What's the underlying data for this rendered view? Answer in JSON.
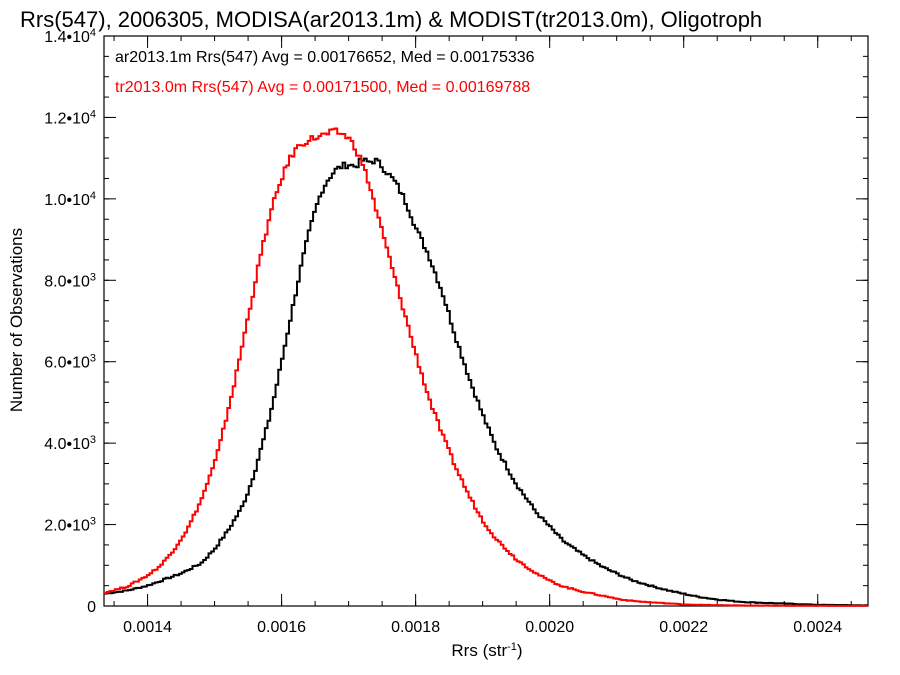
{
  "chart_data": {
    "type": "line",
    "title": "Rrs(547), 2006305, MODISA(ar2013.1m) & MODIST(tr2013.0m), Oligotroph",
    "xlabel": "Rrs (str",
    "xlabel_sup": "-1",
    "xlabel_suffix": ")",
    "ylabel": "Number of Observations",
    "xlim": [
      0.001335,
      0.002475
    ],
    "ylim": [
      0,
      14000
    ],
    "x_ticks": [
      {
        "value": 0.0014,
        "label": "0.0014"
      },
      {
        "value": 0.0016,
        "label": "0.0016"
      },
      {
        "value": 0.0018,
        "label": "0.0018"
      },
      {
        "value": 0.002,
        "label": "0.0020"
      },
      {
        "value": 0.0022,
        "label": "0.0022"
      },
      {
        "value": 0.0024,
        "label": "0.0024"
      }
    ],
    "y_ticks": [
      {
        "value": 0,
        "label": "0",
        "sup": ""
      },
      {
        "value": 2000,
        "label": "2.0•10",
        "sup": "3"
      },
      {
        "value": 4000,
        "label": "4.0•10",
        "sup": "3"
      },
      {
        "value": 6000,
        "label": "6.0•10",
        "sup": "3"
      },
      {
        "value": 8000,
        "label": "8.0•10",
        "sup": "3"
      },
      {
        "value": 10000,
        "label": "1.0•10",
        "sup": "4"
      },
      {
        "value": 12000,
        "label": "1.2•10",
        "sup": "4"
      },
      {
        "value": 14000,
        "label": "1.4•10",
        "sup": "4"
      }
    ],
    "legend_position": "top-left",
    "colors": {
      "ar": "#000000",
      "tr": "#ff0000"
    },
    "series": [
      {
        "name": "ar2013.1m",
        "legend": "ar2013.1m Rrs(547) Avg = 0.00176652, Med = 0.00175336",
        "color": "#000000",
        "x": [
          0.001335,
          0.00137,
          0.0014,
          0.00142,
          0.00145,
          0.00148,
          0.0015,
          0.00152,
          0.00154,
          0.00155,
          0.00156,
          0.00157,
          0.00158,
          0.00159,
          0.0016,
          0.00161,
          0.00162,
          0.00163,
          0.00164,
          0.00165,
          0.00166,
          0.00167,
          0.00168,
          0.00169,
          0.0017,
          0.00171,
          0.00172,
          0.00173,
          0.00174,
          0.00175,
          0.00176,
          0.00177,
          0.00178,
          0.00179,
          0.0018,
          0.00182,
          0.00184,
          0.00186,
          0.00188,
          0.0019,
          0.00192,
          0.00195,
          0.00198,
          0.002,
          0.00202,
          0.00205,
          0.00208,
          0.0021,
          0.00212,
          0.00215,
          0.00218,
          0.0022,
          0.00222,
          0.00225,
          0.00228,
          0.0023,
          0.00235,
          0.0024,
          0.002475
        ],
        "values": [
          300,
          380,
          500,
          620,
          800,
          1050,
          1400,
          1850,
          2400,
          2800,
          3300,
          3900,
          4500,
          5200,
          6000,
          6800,
          7600,
          8400,
          9100,
          9700,
          10200,
          10500,
          10700,
          10800,
          10850,
          10800,
          10950,
          10900,
          10950,
          10800,
          10600,
          10400,
          10100,
          9750,
          9300,
          8600,
          7700,
          6600,
          5600,
          4700,
          3900,
          3000,
          2300,
          1950,
          1600,
          1250,
          950,
          800,
          650,
          500,
          370,
          300,
          230,
          160,
          110,
          90,
          60,
          30,
          15
        ]
      },
      {
        "name": "tr2013.0m",
        "legend": "tr2013.0m Rrs(547) Avg = 0.00171500, Med = 0.00169788",
        "color": "#ff0000",
        "x": [
          0.001335,
          0.00137,
          0.0014,
          0.00142,
          0.00144,
          0.00146,
          0.00148,
          0.0015,
          0.00151,
          0.00152,
          0.00153,
          0.00154,
          0.00155,
          0.00156,
          0.00157,
          0.00158,
          0.00159,
          0.0016,
          0.00161,
          0.00162,
          0.00163,
          0.00164,
          0.00165,
          0.00166,
          0.00167,
          0.00168,
          0.00169,
          0.0017,
          0.00171,
          0.00172,
          0.00173,
          0.00174,
          0.00175,
          0.00176,
          0.00177,
          0.00178,
          0.00179,
          0.0018,
          0.00182,
          0.00184,
          0.00186,
          0.00188,
          0.0019,
          0.00192,
          0.00195,
          0.00198,
          0.002,
          0.00202,
          0.00205,
          0.00208,
          0.0021,
          0.00212,
          0.00215,
          0.00218,
          0.0022,
          0.00222,
          0.00225,
          0.00228,
          0.0023,
          0.00235,
          0.0024,
          0.002475
        ],
        "values": [
          320,
          480,
          750,
          1000,
          1400,
          1900,
          2600,
          3500,
          4100,
          4800,
          5500,
          6300,
          7100,
          7900,
          8700,
          9400,
          10000,
          10500,
          10900,
          11200,
          11350,
          11450,
          11500,
          11550,
          11600,
          11650,
          11600,
          11500,
          11250,
          10900,
          10400,
          9800,
          9200,
          8600,
          8000,
          7400,
          6800,
          6200,
          5100,
          4200,
          3400,
          2700,
          2100,
          1650,
          1150,
          800,
          620,
          480,
          350,
          250,
          180,
          130,
          90,
          60,
          40,
          30,
          20,
          15,
          10,
          8,
          5,
          3
        ]
      }
    ]
  }
}
